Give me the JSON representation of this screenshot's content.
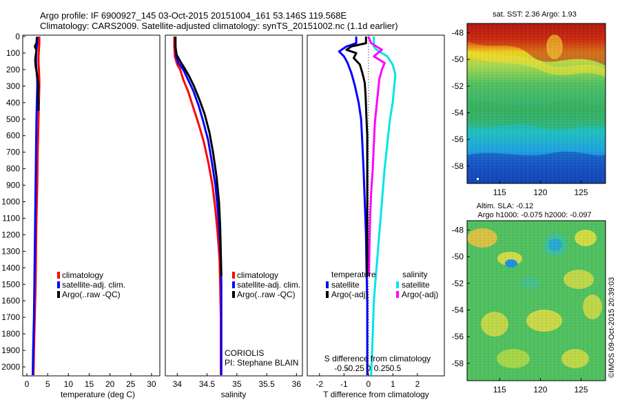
{
  "title_line1": "Argo profile: IF 6900927_145 03-Oct-2015 20151004_161 53.146S 119.568E",
  "title_line2": "Climatology: CARS2009. Satellite-adjusted climatology: synTS_20151002.nc (1.1d earlier)",
  "depth_ticks": [
    0,
    100,
    200,
    300,
    400,
    500,
    600,
    700,
    800,
    900,
    1000,
    1100,
    1200,
    1300,
    1400,
    1500,
    1600,
    1700,
    1800,
    1900,
    2000
  ],
  "colors": {
    "climatology": "#ff0000",
    "satellite": "#0000ff",
    "argo": "#000000",
    "sat_salinity": "#00e5e5",
    "argo_adj_salinity": "#ff00ff"
  },
  "chart_data": [
    {
      "type": "line",
      "xlabel": "temperature (deg C)",
      "xlim": [
        -1,
        32
      ],
      "xticks": [
        "0",
        "5",
        "10",
        "15",
        "20",
        "25",
        "30"
      ],
      "xtick_values": [
        0,
        5,
        10,
        15,
        20,
        25,
        30
      ],
      "ylim": [
        0,
        2070
      ],
      "legend_position": "center",
      "legend": [
        "climatology",
        "satellite-adj. clim.",
        "Argo(..raw -QC)"
      ],
      "series": [
        {
          "name": "climatology",
          "color": "#ff0000",
          "points": [
            [
              3.0,
              0
            ],
            [
              3.0,
              40
            ],
            [
              2.9,
              80
            ],
            [
              2.8,
              120
            ],
            [
              2.8,
              160
            ],
            [
              2.9,
              200
            ],
            [
              3.0,
              260
            ],
            [
              3.0,
              300
            ],
            [
              2.9,
              400
            ],
            [
              2.8,
              500
            ],
            [
              2.6,
              700
            ],
            [
              2.5,
              900
            ],
            [
              2.3,
              1100
            ],
            [
              2.2,
              1300
            ],
            [
              2.1,
              1500
            ],
            [
              1.9,
              1700
            ],
            [
              1.7,
              1900
            ],
            [
              1.6,
              2050
            ]
          ]
        },
        {
          "name": "satellite-adj. clim.",
          "color": "#0000ff",
          "points": [
            [
              2.5,
              0
            ],
            [
              2.5,
              40
            ],
            [
              2.3,
              80
            ],
            [
              2.2,
              120
            ],
            [
              2.2,
              160
            ],
            [
              2.3,
              200
            ],
            [
              2.5,
              260
            ],
            [
              2.5,
              300
            ],
            [
              2.4,
              400
            ],
            [
              2.3,
              500
            ],
            [
              2.2,
              700
            ],
            [
              2.1,
              900
            ],
            [
              2.0,
              1100
            ],
            [
              1.9,
              1300
            ],
            [
              1.8,
              1500
            ],
            [
              1.7,
              1700
            ],
            [
              1.5,
              1900
            ],
            [
              1.4,
              2050
            ]
          ]
        },
        {
          "name": "Argo(..raw -QC)",
          "color": "#000000",
          "points": [
            [
              2.4,
              5
            ],
            [
              2.3,
              40
            ],
            [
              1.9,
              60
            ],
            [
              2.3,
              80
            ],
            [
              2.2,
              100
            ],
            [
              2.0,
              140
            ],
            [
              2.1,
              180
            ],
            [
              2.4,
              220
            ],
            [
              2.6,
              260
            ],
            [
              2.8,
              300
            ],
            [
              2.7,
              350
            ],
            [
              2.8,
              400
            ],
            [
              2.8,
              450
            ]
          ]
        }
      ]
    },
    {
      "type": "line",
      "xlabel": "salinity",
      "xlim": [
        33.8,
        36.1
      ],
      "xticks": [
        "34",
        "34.5",
        "35",
        "35.5",
        "36"
      ],
      "xtick_values": [
        34,
        34.5,
        35,
        35.5,
        36
      ],
      "ylim": [
        0,
        2070
      ],
      "legend_position": "center",
      "legend": [
        "climatology",
        "satellite-adj. clim.",
        "Argo(..raw -QC)"
      ],
      "annotations": [
        "CORIOLIS",
        "PI: Stephane BLAIN"
      ],
      "series": [
        {
          "name": "climatology",
          "color": "#ff0000",
          "points": [
            [
              33.95,
              0
            ],
            [
              33.95,
              60
            ],
            [
              33.96,
              120
            ],
            [
              34.0,
              170
            ],
            [
              34.05,
              200
            ],
            [
              34.1,
              260
            ],
            [
              34.18,
              330
            ],
            [
              34.26,
              420
            ],
            [
              34.35,
              520
            ],
            [
              34.44,
              630
            ],
            [
              34.52,
              760
            ],
            [
              34.59,
              900
            ],
            [
              34.64,
              1050
            ],
            [
              34.68,
              1200
            ],
            [
              34.71,
              1350
            ],
            [
              34.72,
              1500
            ],
            [
              34.73,
              1700
            ],
            [
              34.73,
              1900
            ],
            [
              34.73,
              2050
            ]
          ]
        },
        {
          "name": "satellite-adj. clim.",
          "color": "#0000ff",
          "points": [
            [
              33.97,
              0
            ],
            [
              33.97,
              60
            ],
            [
              33.98,
              120
            ],
            [
              34.02,
              160
            ],
            [
              34.1,
              200
            ],
            [
              34.18,
              260
            ],
            [
              34.27,
              330
            ],
            [
              34.36,
              420
            ],
            [
              34.44,
              520
            ],
            [
              34.52,
              630
            ],
            [
              34.58,
              760
            ],
            [
              34.64,
              900
            ],
            [
              34.68,
              1050
            ],
            [
              34.71,
              1200
            ],
            [
              34.73,
              1350
            ],
            [
              34.74,
              1500
            ],
            [
              34.74,
              1700
            ],
            [
              34.74,
              1900
            ],
            [
              34.74,
              2050
            ]
          ]
        },
        {
          "name": "Argo(..raw -QC)",
          "color": "#000000",
          "points": [
            [
              33.97,
              0
            ],
            [
              33.97,
              60
            ],
            [
              33.99,
              110
            ],
            [
              34.05,
              150
            ],
            [
              34.12,
              190
            ],
            [
              34.2,
              240
            ],
            [
              34.28,
              300
            ],
            [
              34.37,
              380
            ],
            [
              34.46,
              470
            ],
            [
              34.54,
              580
            ],
            [
              34.6,
              700
            ],
            [
              34.66,
              850
            ],
            [
              34.7,
              1000
            ],
            [
              34.72,
              1150
            ],
            [
              34.73,
              1300
            ],
            [
              34.74,
              1450
            ]
          ]
        }
      ]
    },
    {
      "type": "line",
      "xlabel": "T difference from climatology",
      "title": "S difference from climatology",
      "xlim": [
        -2.5,
        3.1
      ],
      "xticks": [
        "-2",
        "-1",
        "0",
        "1",
        "2"
      ],
      "xtick_values": [
        -2,
        -1,
        0,
        1,
        2
      ],
      "s_xticks": [
        "-0.5",
        "-0.25",
        "0",
        "0.25",
        "0.5"
      ],
      "ylim": [
        0,
        2070
      ],
      "legend_temperature_title": "temperature",
      "legend_salinity_title": "salinity",
      "legend_temperature": [
        "satellite",
        "Argo(-adj)"
      ],
      "legend_salinity": [
        "satellite",
        "Argo(-adj)"
      ],
      "series": [
        {
          "name": "temperature satellite",
          "color": "#0000ff",
          "points": [
            [
              -0.5,
              0
            ],
            [
              -0.5,
              40
            ],
            [
              -0.9,
              60
            ],
            [
              -1.2,
              90
            ],
            [
              -1.0,
              120
            ],
            [
              -0.85,
              160
            ],
            [
              -0.7,
              220
            ],
            [
              -0.55,
              300
            ],
            [
              -0.4,
              400
            ],
            [
              -0.3,
              500
            ],
            [
              -0.25,
              650
            ],
            [
              -0.2,
              800
            ],
            [
              -0.15,
              1000
            ],
            [
              -0.1,
              1200
            ],
            [
              -0.08,
              1400
            ],
            [
              -0.05,
              1600
            ],
            [
              -0.05,
              1800
            ],
            [
              -0.05,
              2050
            ]
          ]
        },
        {
          "name": "temperature Argo(-adj)",
          "color": "#000000",
          "points": [
            [
              -0.1,
              0
            ],
            [
              -0.1,
              40
            ],
            [
              -0.7,
              60
            ],
            [
              -0.9,
              80
            ],
            [
              -0.5,
              100
            ],
            [
              -0.6,
              130
            ],
            [
              -0.35,
              170
            ],
            [
              -0.25,
              220
            ],
            [
              -0.15,
              280
            ],
            [
              -0.12,
              350
            ],
            [
              -0.1,
              420
            ],
            [
              -0.08,
              500
            ],
            [
              -0.05,
              600
            ],
            [
              -0.05,
              700
            ],
            [
              -0.05,
              800
            ],
            [
              -0.05,
              900
            ],
            [
              -0.05,
              1000
            ],
            [
              -0.05,
              1100
            ],
            [
              -0.05,
              1200
            ],
            [
              -0.05,
              1300
            ],
            [
              -0.05,
              1400
            ],
            [
              -0.05,
              1450
            ]
          ]
        },
        {
          "name": "salinity satellite",
          "color": "#00e5e5",
          "points": [
            [
              0.1,
              0
            ],
            [
              0.1,
              60
            ],
            [
              0.15,
              80
            ],
            [
              0.35,
              120
            ],
            [
              0.45,
              170
            ],
            [
              0.5,
              230
            ],
            [
              0.48,
              300
            ],
            [
              0.45,
              400
            ],
            [
              0.4,
              500
            ],
            [
              0.35,
              650
            ],
            [
              0.3,
              800
            ],
            [
              0.25,
              1000
            ],
            [
              0.2,
              1200
            ],
            [
              0.15,
              1400
            ],
            [
              0.1,
              1600
            ],
            [
              0.08,
              1800
            ],
            [
              0.05,
              2050
            ]
          ]
        },
        {
          "name": "salinity Argo(-adj)",
          "color": "#ff00ff",
          "points": [
            [
              0.0,
              0
            ],
            [
              0.05,
              40
            ],
            [
              0.25,
              80
            ],
            [
              0.1,
              120
            ],
            [
              0.3,
              160
            ],
            [
              0.25,
              200
            ],
            [
              0.2,
              260
            ],
            [
              0.18,
              330
            ],
            [
              0.15,
              420
            ],
            [
              0.12,
              520
            ],
            [
              0.1,
              650
            ],
            [
              0.08,
              800
            ],
            [
              0.05,
              950
            ],
            [
              0.03,
              1100
            ],
            [
              0.02,
              1250
            ],
            [
              0.01,
              1450
            ]
          ]
        }
      ]
    },
    {
      "type": "heatmap",
      "title": "sat. SST: 2.36 Argo: 1.93",
      "xticks": [
        "115",
        "120",
        "125"
      ],
      "xtick_values": [
        115,
        120,
        125
      ],
      "yticks": [
        "-48",
        "-50",
        "-52",
        "-54",
        "-56",
        "-58"
      ],
      "ytick_values": [
        -48,
        -50,
        -52,
        -54,
        -56,
        -58
      ],
      "xlim": [
        111,
        128
      ],
      "ylim": [
        -59.3,
        -47.3
      ]
    },
    {
      "type": "heatmap",
      "title": "Altim. SLA: -0.12",
      "subtitle": "Argo h1000: -0.075 h2000: -0.097",
      "xticks": [
        "115",
        "120",
        "125"
      ],
      "xtick_values": [
        115,
        120,
        125
      ],
      "yticks": [
        "-48",
        "-50",
        "-52",
        "-54",
        "-56",
        "-58"
      ],
      "ytick_values": [
        -48,
        -50,
        -52,
        -54,
        -56,
        -58
      ],
      "xlim": [
        111,
        128
      ],
      "ylim": [
        -59.3,
        -47.3
      ]
    }
  ],
  "watermark": "©IMOS 09-Oct-2015 20:39:03"
}
